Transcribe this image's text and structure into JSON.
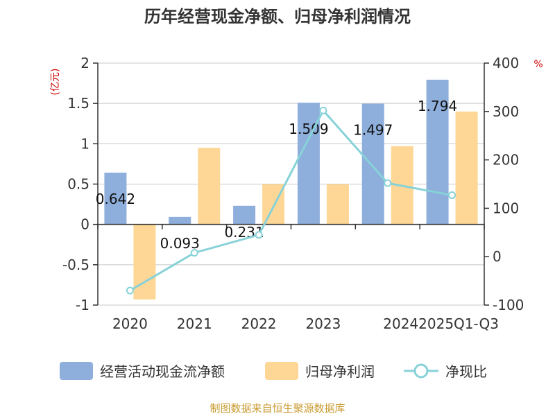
{
  "chart_data": {
    "type": "bar+line",
    "title": "历年经营现金净额、归母净利润情况",
    "categories": [
      "2020",
      "2021",
      "2022",
      "2023",
      "2024",
      "2025Q1-Q3"
    ],
    "series": [
      {
        "name": "经营活动现金流净额",
        "type": "bar",
        "axis": "left",
        "color": "#8eaedb",
        "values": [
          0.642,
          0.093,
          0.231,
          1.509,
          1.497,
          1.794
        ],
        "labels": [
          "0.642",
          "0.093",
          "0.231",
          "1.509",
          "1.497",
          "1.794"
        ]
      },
      {
        "name": "归母净利润",
        "type": "bar",
        "axis": "left",
        "color": "#fed796",
        "values": [
          -0.93,
          0.95,
          0.5,
          0.5,
          0.97,
          1.4
        ]
      },
      {
        "name": "净现比",
        "type": "line",
        "axis": "right",
        "color": "#87d2d8",
        "values": [
          -70,
          8,
          45,
          302,
          152,
          127
        ]
      }
    ],
    "left_axis": {
      "unit": "(亿元)",
      "unit_color": "#cc0000",
      "min": -1,
      "max": 2,
      "ticks": [
        -1,
        -0.5,
        0,
        0.5,
        1,
        1.5,
        2
      ],
      "tick_labels": [
        "-1",
        "-0.5",
        "0",
        "0.5",
        "1",
        "1.5",
        "2"
      ]
    },
    "right_axis": {
      "unit": "%",
      "unit_color": "#cc0000",
      "min": -100,
      "max": 400,
      "ticks": [
        -100,
        0,
        100,
        200,
        300,
        400
      ],
      "tick_labels": [
        "-100",
        "0",
        "100",
        "200",
        "300",
        "400"
      ]
    },
    "grid": true,
    "legend_position": "bottom"
  },
  "source": {
    "text": "制图数据来自恒生聚源数据库",
    "color": "#c99a2e"
  }
}
